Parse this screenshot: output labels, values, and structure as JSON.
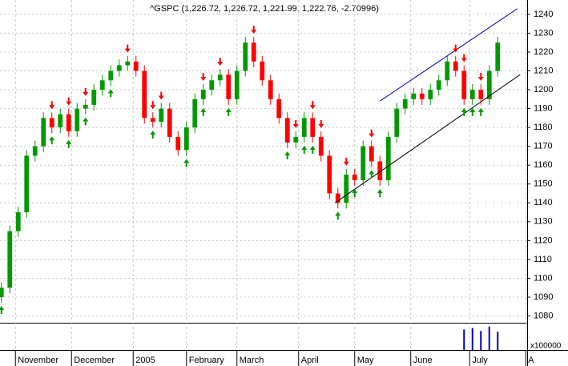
{
  "chart_data": {
    "type": "candlestick",
    "title": "^GSPC (1,226.72, 1,226.72, 1,221.99, 1,222.76, -2.70996)",
    "x": [
      0,
      3,
      6,
      9,
      12,
      15,
      18,
      21,
      24,
      27,
      30,
      33,
      36,
      39,
      42,
      45,
      48,
      51,
      54,
      57,
      60,
      63,
      66,
      69,
      72,
      75,
      78,
      81,
      84,
      87,
      90,
      93,
      96,
      99,
      102,
      105,
      108,
      111,
      114,
      117,
      120,
      123,
      126,
      129,
      132,
      135,
      138,
      141,
      144,
      147,
      150,
      153,
      156,
      159,
      162,
      165,
      168,
      171,
      174,
      177
    ],
    "open": [
      1090,
      1095,
      1125,
      1135,
      1165,
      1170,
      1185,
      1180,
      1187,
      1178,
      1190,
      1192,
      1200,
      1205,
      1210,
      1213,
      1215,
      1210,
      1185,
      1183,
      1190,
      1175,
      1168,
      1180,
      1195,
      1200,
      1205,
      1208,
      1195,
      1210,
      1225,
      1215,
      1205,
      1195,
      1185,
      1172,
      1175,
      1185,
      1175,
      1165,
      1145,
      1140,
      1155,
      1152,
      1170,
      1162,
      1152,
      1175,
      1190,
      1195,
      1198,
      1195,
      1200,
      1205,
      1215,
      1210,
      1195,
      1200,
      1195,
      1210
    ],
    "high": [
      1098,
      1128,
      1138,
      1168,
      1173,
      1188,
      1188,
      1190,
      1190,
      1193,
      1195,
      1203,
      1208,
      1213,
      1216,
      1218,
      1218,
      1213,
      1188,
      1193,
      1193,
      1178,
      1183,
      1198,
      1203,
      1208,
      1211,
      1211,
      1213,
      1228,
      1228,
      1218,
      1208,
      1198,
      1188,
      1178,
      1188,
      1188,
      1178,
      1168,
      1148,
      1158,
      1158,
      1173,
      1173,
      1165,
      1178,
      1193,
      1198,
      1201,
      1201,
      1203,
      1208,
      1218,
      1218,
      1213,
      1203,
      1203,
      1213,
      1228
    ],
    "low": [
      1087,
      1092,
      1122,
      1132,
      1162,
      1167,
      1177,
      1177,
      1175,
      1175,
      1187,
      1189,
      1197,
      1202,
      1207,
      1210,
      1207,
      1182,
      1180,
      1180,
      1172,
      1165,
      1165,
      1177,
      1192,
      1197,
      1202,
      1192,
      1192,
      1207,
      1212,
      1202,
      1192,
      1182,
      1169,
      1169,
      1172,
      1172,
      1162,
      1142,
      1137,
      1137,
      1149,
      1149,
      1159,
      1149,
      1149,
      1172,
      1187,
      1192,
      1192,
      1192,
      1197,
      1202,
      1207,
      1192,
      1192,
      1192,
      1192,
      1207
    ],
    "close": [
      1095,
      1125,
      1135,
      1165,
      1170,
      1185,
      1180,
      1187,
      1178,
      1190,
      1192,
      1200,
      1205,
      1210,
      1213,
      1215,
      1210,
      1185,
      1183,
      1190,
      1175,
      1168,
      1180,
      1195,
      1200,
      1205,
      1208,
      1195,
      1210,
      1225,
      1215,
      1205,
      1195,
      1185,
      1172,
      1175,
      1185,
      1175,
      1165,
      1145,
      1140,
      1155,
      1152,
      1170,
      1162,
      1152,
      1175,
      1190,
      1195,
      1198,
      1195,
      1200,
      1205,
      1215,
      1210,
      1195,
      1200,
      1195,
      1210,
      1225
    ],
    "up_color": "#009900",
    "down_color": "#ff0000",
    "down_arrows": [
      18,
      24,
      30,
      45,
      54,
      57,
      72,
      78,
      90,
      105,
      111,
      114,
      123,
      132,
      162,
      165,
      171
    ],
    "up_arrows": [
      0,
      18,
      24,
      30,
      39,
      54,
      66,
      72,
      81,
      102,
      108,
      111,
      120,
      126,
      132,
      135,
      165,
      168,
      171
    ],
    "lines": [
      {
        "color": "#0000cc",
        "x": [
          135,
          184
        ],
        "y": [
          1194,
          1243
        ]
      },
      {
        "color": "#000000",
        "x": [
          119,
          185
        ],
        "y": [
          1140,
          1208
        ]
      }
    ],
    "volume": [
      null,
      null,
      null,
      null,
      null,
      null,
      null,
      null,
      null,
      null,
      null,
      null,
      null,
      null,
      null,
      null,
      null,
      null,
      null,
      null,
      null,
      null,
      null,
      null,
      null,
      null,
      null,
      null,
      null,
      null,
      null,
      null,
      null,
      null,
      null,
      null,
      null,
      null,
      null,
      null,
      null,
      null,
      null,
      null,
      null,
      null,
      null,
      null,
      null,
      null,
      null,
      null,
      null,
      null,
      null,
      28,
      30,
      26,
      32,
      25
    ],
    "volume_color": "#0000cc",
    "volume_ylim": [
      0,
      35
    ],
    "volume_label": "x100000",
    "xlim": [
      -0.5,
      187.5
    ],
    "xticks": [
      {
        "value": 5,
        "label": "November"
      },
      {
        "value": 25,
        "label": "December"
      },
      {
        "value": 47,
        "label": "2005"
      },
      {
        "value": 66,
        "label": "February"
      },
      {
        "value": 84,
        "label": "March"
      },
      {
        "value": 106,
        "label": "April"
      },
      {
        "value": 126,
        "label": "May"
      },
      {
        "value": 146,
        "label": "June"
      },
      {
        "value": 167,
        "label": "July"
      },
      {
        "value": 187,
        "label": "A"
      }
    ],
    "ylim": [
      1076.4,
      1247.6
    ],
    "yticks": [
      1080,
      1090,
      1100,
      1110,
      1120,
      1130,
      1140,
      1150,
      1160,
      1170,
      1180,
      1190,
      1200,
      1210,
      1220,
      1230,
      1240
    ],
    "grid": true
  }
}
